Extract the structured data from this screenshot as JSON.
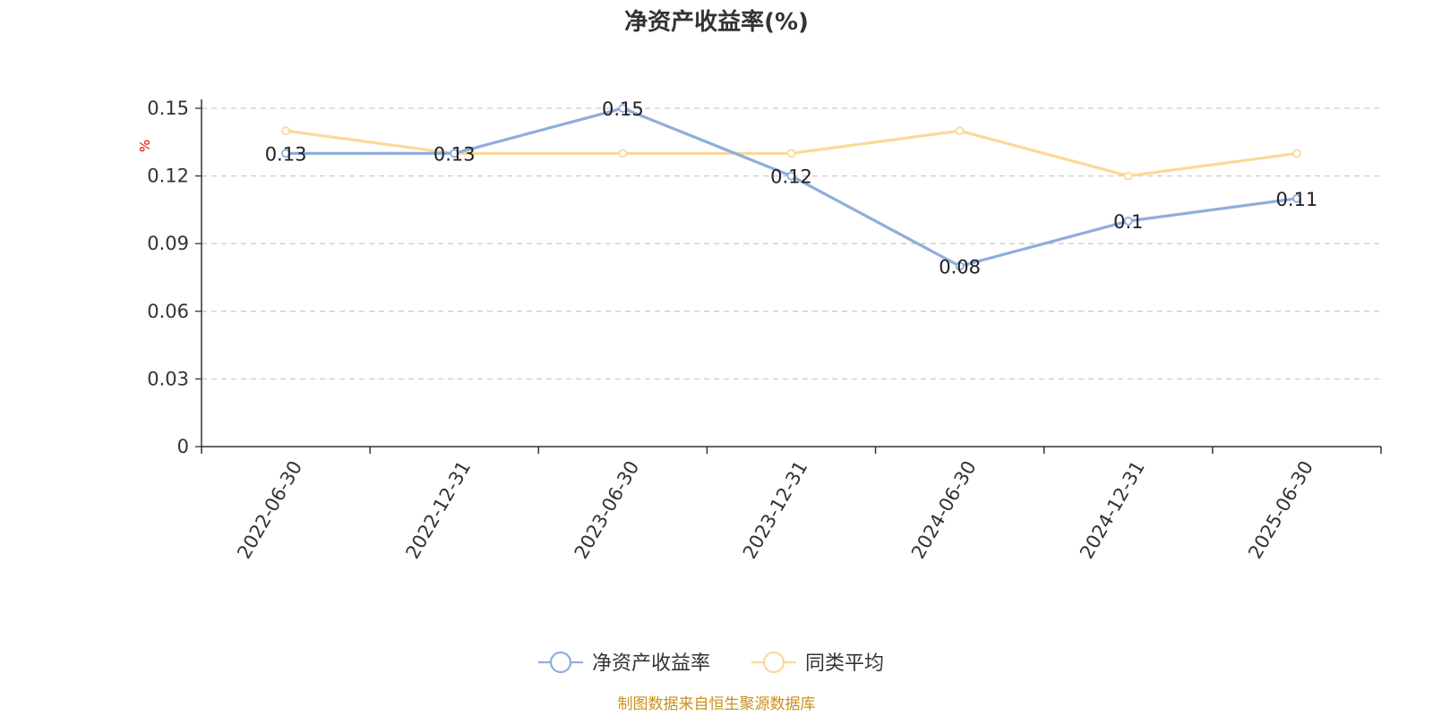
{
  "chart_data": {
    "type": "line",
    "title": "净资产收益率(%)",
    "ylabel": "%",
    "xlabel": "",
    "categories": [
      "2022-06-30",
      "2022-12-31",
      "2023-06-30",
      "2023-12-31",
      "2024-06-30",
      "2024-12-31",
      "2025-06-30"
    ],
    "ylim": [
      0,
      0.15
    ],
    "yticks": [
      "0",
      "0.03",
      "0.06",
      "0.09",
      "0.12",
      "0.15"
    ],
    "grid": true,
    "legend_position": "bottom",
    "series": [
      {
        "name": "净资产收益率",
        "values": [
          0.13,
          0.13,
          0.15,
          0.12,
          0.08,
          0.1,
          0.11
        ],
        "labels": [
          "0.13",
          "0.13",
          "0.15",
          "0.12",
          "0.08",
          "0.1",
          "0.11"
        ],
        "color": "#8eaedb"
      },
      {
        "name": "同类平均",
        "values": [
          0.14,
          0.13,
          0.13,
          0.13,
          0.14,
          0.12,
          0.13
        ],
        "color": "#fbd99a"
      }
    ]
  },
  "footer": {
    "source": "制图数据来自恒生聚源数据库"
  }
}
